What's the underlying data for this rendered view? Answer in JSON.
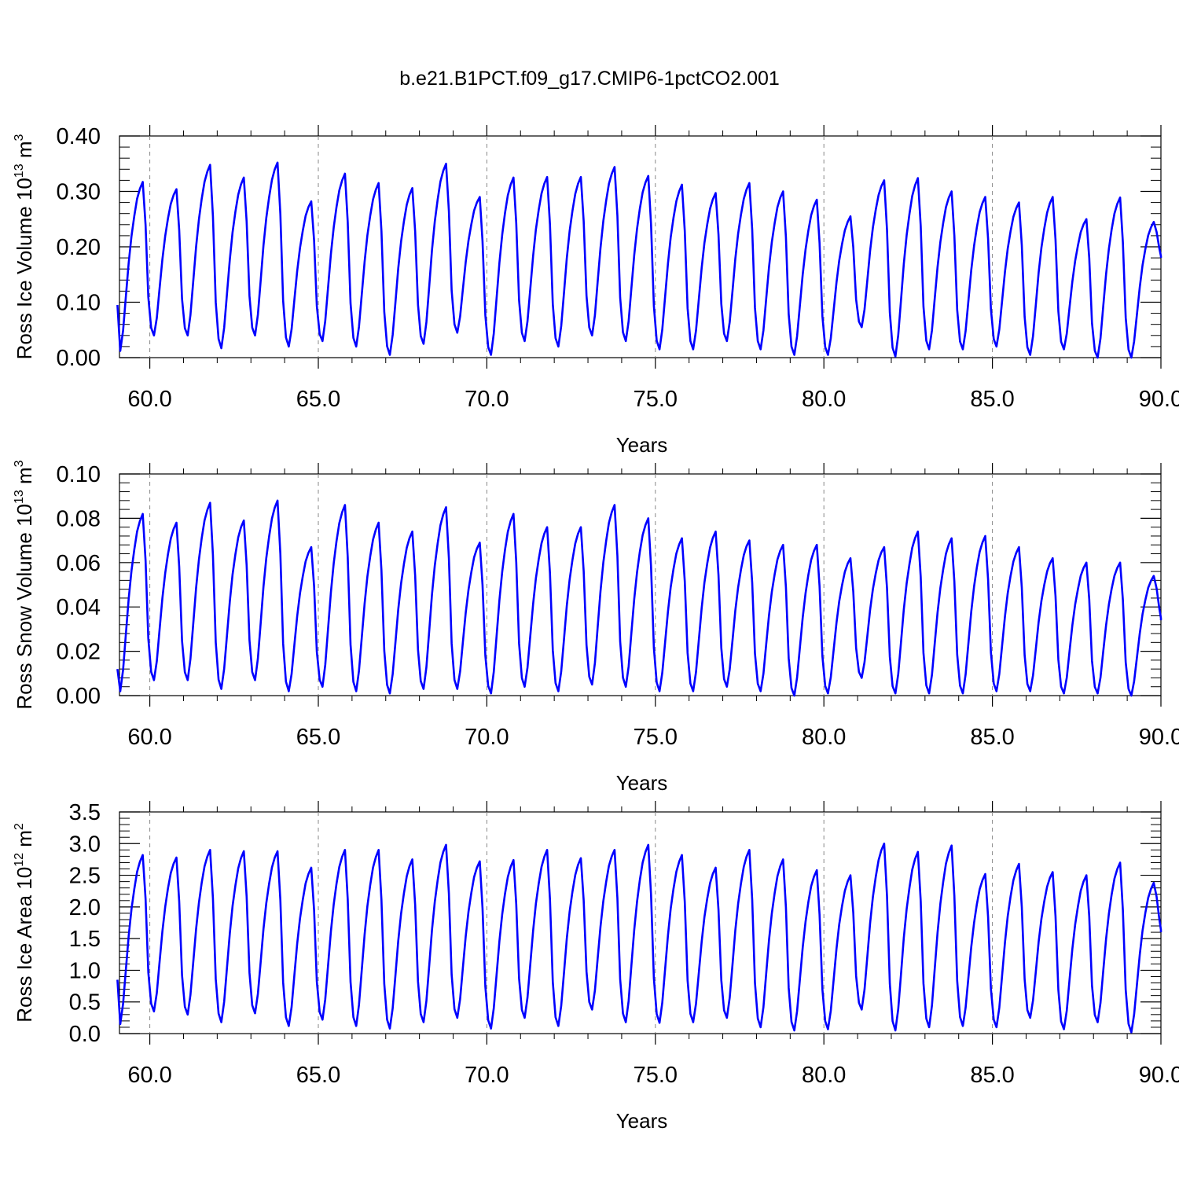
{
  "figure": {
    "title": "b.e21.B1PCT.f09_g17.CMIP6-1pctCO2.001"
  },
  "chart_data": [
    {
      "type": "line",
      "name": "ross-ice-volume",
      "xlabel": "Years",
      "ylabel_main": "Ross Ice Volume 10",
      "ylabel_exp": "13",
      "ylabel_unit": " m",
      "ylabel_unit_exp": "3",
      "xlim": [
        59.1,
        90.0
      ],
      "ylim": [
        0.0,
        0.4
      ],
      "xticks": [
        60,
        65,
        70,
        75,
        80,
        85,
        90
      ],
      "xtick_labels": [
        "60.0",
        "65.0",
        "70.0",
        "75.0",
        "80.0",
        "85.0",
        "90.0"
      ],
      "yticks": [
        0.0,
        0.1,
        0.2,
        0.3,
        0.4
      ],
      "ytick_labels": [
        "0.00",
        "0.10",
        "0.20",
        "0.30",
        "0.40"
      ],
      "grid": "vertical dashed at major x ticks",
      "line_color": "#0000ff",
      "series": [
        {
          "x_start": 59.04,
          "x_step": 0.08333,
          "min_values": [
            0.012,
            0.04,
            0.04,
            0.017,
            0.04,
            0.02,
            0.03,
            0.02,
            0.005,
            0.025,
            0.045,
            0.005,
            0.03,
            0.02,
            0.04,
            0.03,
            0.015,
            0.015,
            0.03,
            0.015,
            0.005,
            0.005,
            0.055,
            0.002,
            0.015,
            0.015,
            0.02,
            0.005,
            0.015,
            0.0,
            0.0
          ],
          "max_values": [
            0.317,
            0.304,
            0.348,
            0.325,
            0.352,
            0.282,
            0.332,
            0.315,
            0.306,
            0.35,
            0.29,
            0.325,
            0.326,
            0.326,
            0.344,
            0.328,
            0.312,
            0.297,
            0.315,
            0.3,
            0.285,
            0.255,
            0.32,
            0.324,
            0.3,
            0.29,
            0.28,
            0.29,
            0.25,
            0.289,
            0.245
          ],
          "start_value": 0.095,
          "end_value": 0.18
        }
      ]
    },
    {
      "type": "line",
      "name": "ross-snow-volume",
      "xlabel": "Years",
      "ylabel_main": "Ross Snow Volume 10",
      "ylabel_exp": "13",
      "ylabel_unit": " m",
      "ylabel_unit_exp": "3",
      "xlim": [
        59.1,
        90.0
      ],
      "ylim": [
        0.0,
        0.1
      ],
      "xticks": [
        60,
        65,
        70,
        75,
        80,
        85,
        90
      ],
      "xtick_labels": [
        "60.0",
        "65.0",
        "70.0",
        "75.0",
        "80.0",
        "85.0",
        "90.0"
      ],
      "yticks": [
        0.0,
        0.02,
        0.04,
        0.06,
        0.08,
        0.1
      ],
      "ytick_labels": [
        "0.00",
        "0.02",
        "0.04",
        "0.06",
        "0.08",
        "0.10"
      ],
      "grid": "vertical dashed at major x ticks",
      "line_color": "#0000ff",
      "series": [
        {
          "x_start": 59.04,
          "x_step": 0.08333,
          "min_values": [
            0.002,
            0.007,
            0.007,
            0.003,
            0.007,
            0.002,
            0.004,
            0.002,
            0.001,
            0.003,
            0.003,
            0.001,
            0.004,
            0.002,
            0.005,
            0.004,
            0.002,
            0.002,
            0.004,
            0.002,
            0.0,
            0.001,
            0.008,
            0.001,
            0.001,
            0.001,
            0.002,
            0.002,
            0.001,
            0.001,
            0.0
          ],
          "max_values": [
            0.082,
            0.078,
            0.087,
            0.079,
            0.088,
            0.067,
            0.086,
            0.078,
            0.074,
            0.085,
            0.069,
            0.082,
            0.076,
            0.076,
            0.086,
            0.08,
            0.071,
            0.074,
            0.07,
            0.068,
            0.068,
            0.062,
            0.067,
            0.074,
            0.071,
            0.072,
            0.067,
            0.062,
            0.06,
            0.06,
            0.054
          ],
          "start_value": 0.012,
          "end_value": 0.034
        }
      ]
    },
    {
      "type": "line",
      "name": "ross-ice-area",
      "xlabel": "Years",
      "ylabel_main": "Ross Ice Area 10",
      "ylabel_exp": "12",
      "ylabel_unit": " m",
      "ylabel_unit_exp": "2",
      "xlim": [
        59.1,
        90.0
      ],
      "ylim": [
        0.0,
        3.5
      ],
      "xticks": [
        60,
        65,
        70,
        75,
        80,
        85,
        90
      ],
      "xtick_labels": [
        "60.0",
        "65.0",
        "70.0",
        "75.0",
        "80.0",
        "85.0",
        "90.0"
      ],
      "yticks": [
        0.0,
        0.5,
        1.0,
        1.5,
        2.0,
        2.5,
        3.0,
        3.5
      ],
      "ytick_labels": [
        "0.0",
        "0.5",
        "1.0",
        "1.5",
        "2.0",
        "2.5",
        "3.0",
        "3.5"
      ],
      "grid": "vertical dashed at major x ticks",
      "line_color": "#0000ff",
      "series": [
        {
          "x_start": 59.04,
          "x_step": 0.08333,
          "min_values": [
            0.15,
            0.35,
            0.3,
            0.18,
            0.32,
            0.12,
            0.22,
            0.12,
            0.08,
            0.18,
            0.25,
            0.08,
            0.25,
            0.12,
            0.38,
            0.18,
            0.17,
            0.18,
            0.25,
            0.1,
            0.05,
            0.07,
            0.38,
            0.05,
            0.1,
            0.12,
            0.1,
            0.25,
            0.07,
            0.18,
            0.02
          ],
          "max_values": [
            2.82,
            2.78,
            2.9,
            2.88,
            2.88,
            2.62,
            2.9,
            2.9,
            2.75,
            2.98,
            2.72,
            2.74,
            2.9,
            2.77,
            2.9,
            2.98,
            2.82,
            2.62,
            2.9,
            2.75,
            2.58,
            2.5,
            3.0,
            2.87,
            2.97,
            2.52,
            2.68,
            2.55,
            2.5,
            2.7,
            2.38
          ],
          "start_value": 0.85,
          "end_value": 1.6
        }
      ]
    }
  ]
}
